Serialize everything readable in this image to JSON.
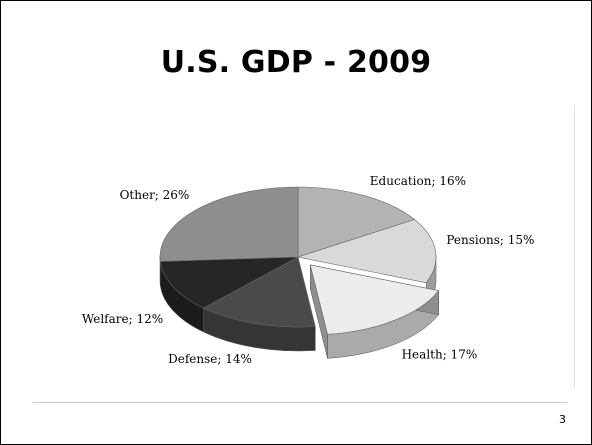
{
  "slide": {
    "title": "U.S. GDP - 2009",
    "page_number": "3"
  },
  "chart_data": {
    "type": "pie",
    "title": "U.S. GDP - 2009",
    "three_d": true,
    "exploded": [
      "Health"
    ],
    "slices": [
      {
        "label": "Education; 16%",
        "name": "Education",
        "value": 16,
        "color": "#b3b3b3"
      },
      {
        "label": "Pensions; 15%",
        "name": "Pensions",
        "value": 15,
        "color": "#d9d9d9"
      },
      {
        "label": "Health; 17%",
        "name": "Health",
        "value": 17,
        "color": "#ececec"
      },
      {
        "label": "Defense; 14%",
        "name": "Defense",
        "value": 14,
        "color": "#4a4a4a"
      },
      {
        "label": "Welfare; 12%",
        "name": "Welfare",
        "value": 12,
        "color": "#262626"
      },
      {
        "label": "Other; 26%",
        "name": "Other",
        "value": 26,
        "color": "#8e8e8e"
      }
    ]
  }
}
